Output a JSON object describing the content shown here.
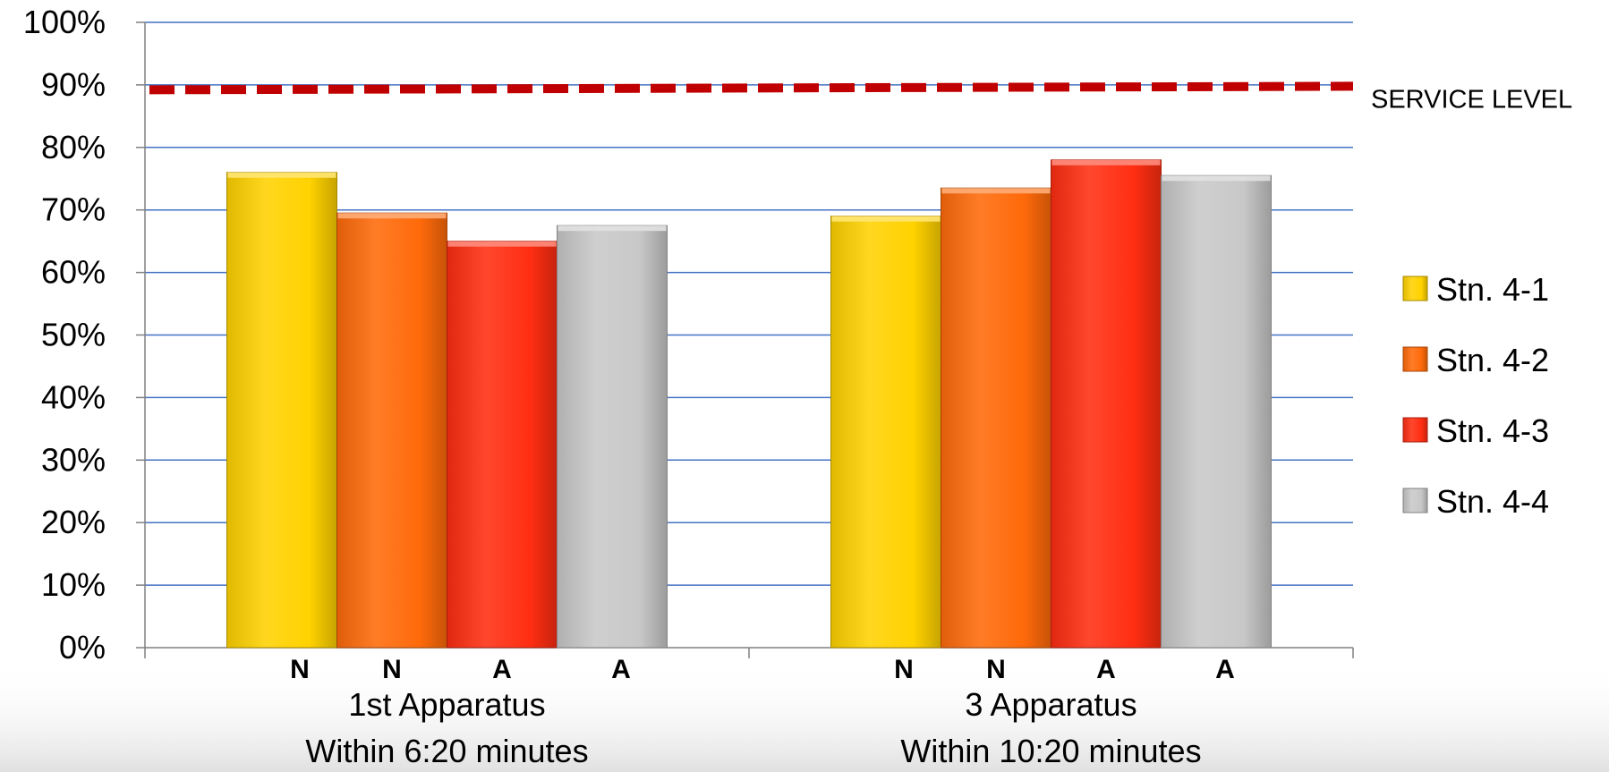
{
  "chart_data": {
    "type": "bar",
    "categories": [
      {
        "line1": "1st  Apparatus",
        "line2": "Within 6:20 minutes",
        "bar_letters": [
          "N",
          "N",
          "A",
          "A"
        ]
      },
      {
        "line1": "3 Apparatus",
        "line2": "Within 10:20 minutes",
        "bar_letters": [
          "N",
          "N",
          "A",
          "A"
        ]
      }
    ],
    "series": [
      {
        "name": "Stn. 4-1",
        "color": "#FFD200",
        "values": [
          76,
          69
        ]
      },
      {
        "name": "Stn. 4-2",
        "color": "#FF6A0A",
        "values": [
          69.5,
          73.5
        ]
      },
      {
        "name": "Stn. 4-3",
        "color": "#FF2E12",
        "values": [
          65,
          78
        ]
      },
      {
        "name": "Stn. 4-4",
        "color": "#C8C8C8",
        "values": [
          67.5,
          75.5
        ]
      }
    ],
    "y_ticks": [
      "0%",
      "10%",
      "20%",
      "30%",
      "40%",
      "50%",
      "60%",
      "70%",
      "80%",
      "90%",
      "100%"
    ],
    "ylim": [
      0,
      100
    ],
    "grid": true,
    "gridline_color": "#4472C4",
    "reference_line": {
      "value": 89.5,
      "label": "SERVICE LEVEL",
      "color": "#C00000",
      "style": "dashed"
    },
    "legend_position": "right"
  }
}
